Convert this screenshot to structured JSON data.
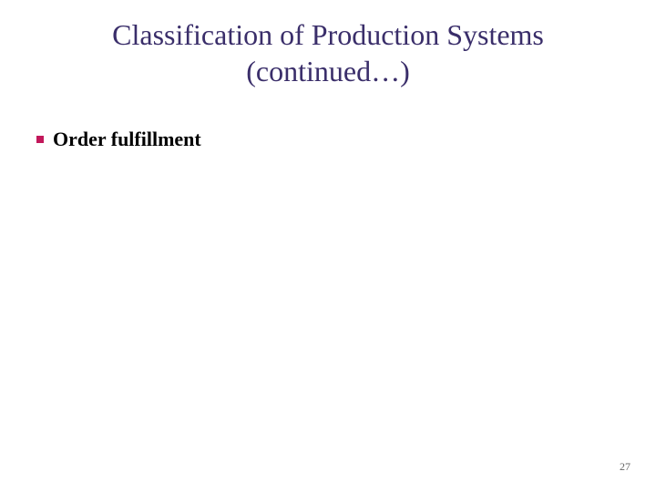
{
  "title": {
    "line1": "Classification of Production Systems",
    "line2": "(continued…)",
    "color": "#3a2e6a",
    "fontsize": 32,
    "fontweight": "normal"
  },
  "content": {
    "bullets": [
      {
        "text": "Order fulfillment"
      }
    ],
    "bullet_marker_color": "#c2185b",
    "bullet_text_color": "#000000",
    "bullet_fontsize": 22,
    "bullet_fontweight": "bold"
  },
  "page_number": {
    "value": "27",
    "color": "#666666",
    "fontsize": 12
  },
  "background_color": "#ffffff"
}
